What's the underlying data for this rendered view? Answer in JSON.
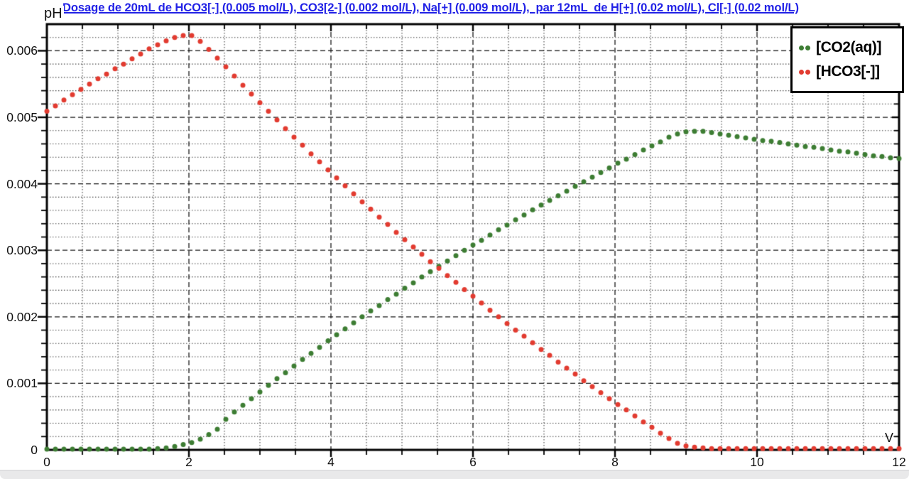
{
  "title": {
    "text": "Dosage de 20mL de HCO3[-] (0.005 mol/L), CO3[2-] (0.002 mol/L), Na[+] (0.009 mol/L),  par 12mL  de H[+] (0.02 mol/L), Cl[-] (0.02 mol/L)",
    "color": "#2222e6"
  },
  "axes": {
    "y_label": "pH",
    "x_label": "V",
    "x_ticks": [
      "0",
      "2",
      "4",
      "6",
      "8",
      "10",
      "12"
    ],
    "y_ticks": [
      "0",
      "0.001",
      "0.002",
      "0.003",
      "0.004",
      "0.005",
      "0.006"
    ]
  },
  "legend": {
    "items": [
      {
        "label": "[CO2(aq)]",
        "color": "#3d7d33"
      },
      {
        "label": "[HCO3[-]]",
        "color": "#e23b30"
      }
    ]
  },
  "chart_data": {
    "type": "scatter",
    "title": "Dosage de 20mL de HCO3[-] (0.005 mol/L), CO3[2-] (0.002 mol/L), Na[+] (0.009 mol/L),  par 12mL  de H[+] (0.02 mol/L), Cl[-] (0.02 mol/L)",
    "xlabel": "V",
    "ylabel": "pH",
    "xlim": [
      0,
      12
    ],
    "ylim": [
      0,
      0.0064
    ],
    "x_major_step": 2,
    "x_minor_step": 0.5,
    "y_major_step": 0.001,
    "y_minor_step": 0.0002,
    "grid": true,
    "legend_position": "top-right",
    "x": [
      0,
      0.12,
      0.24,
      0.36,
      0.48,
      0.6,
      0.72,
      0.84,
      0.96,
      1.08,
      1.2,
      1.32,
      1.44,
      1.56,
      1.68,
      1.8,
      1.92,
      2.04,
      2.16,
      2.28,
      2.4,
      2.52,
      2.64,
      2.76,
      2.88,
      3,
      3.12,
      3.24,
      3.36,
      3.48,
      3.6,
      3.72,
      3.84,
      3.96,
      4.08,
      4.2,
      4.32,
      4.44,
      4.56,
      4.68,
      4.8,
      4.92,
      5.04,
      5.16,
      5.28,
      5.4,
      5.52,
      5.64,
      5.76,
      5.88,
      6,
      6.12,
      6.24,
      6.36,
      6.48,
      6.6,
      6.72,
      6.84,
      6.96,
      7.08,
      7.2,
      7.32,
      7.44,
      7.56,
      7.68,
      7.8,
      7.92,
      8.04,
      8.16,
      8.28,
      8.4,
      8.52,
      8.64,
      8.76,
      8.88,
      9,
      9.12,
      9.24,
      9.36,
      9.48,
      9.6,
      9.72,
      9.84,
      9.96,
      10.08,
      10.2,
      10.32,
      10.44,
      10.56,
      10.68,
      10.8,
      10.92,
      11.04,
      11.16,
      11.28,
      11.4,
      11.52,
      11.64,
      11.76,
      11.88,
      12
    ],
    "series": [
      {
        "name": "[CO2(aq)]",
        "color": "#3d7d33",
        "values": [
          1e-05,
          1e-05,
          1e-05,
          1e-05,
          1e-05,
          1e-05,
          1e-05,
          1e-05,
          1e-05,
          1e-05,
          1e-05,
          1e-05,
          1e-05,
          2e-05,
          3e-05,
          5e-05,
          8e-05,
          0.00011,
          0.00016,
          0.00023,
          0.00031,
          0.00046,
          0.00057,
          0.00067,
          0.00077,
          0.00087,
          0.00097,
          0.00107,
          0.00116,
          0.00126,
          0.00136,
          0.00145,
          0.00154,
          0.00164,
          0.00173,
          0.00182,
          0.00191,
          0.002,
          0.00209,
          0.00217,
          0.00226,
          0.00234,
          0.00243,
          0.00251,
          0.0026,
          0.00268,
          0.00276,
          0.00284,
          0.00292,
          0.003,
          0.00308,
          0.00315,
          0.00323,
          0.00331,
          0.00338,
          0.00346,
          0.00353,
          0.00361,
          0.00368,
          0.00375,
          0.00382,
          0.00389,
          0.00396,
          0.00403,
          0.0041,
          0.00417,
          0.00424,
          0.00431,
          0.00437,
          0.00444,
          0.00451,
          0.00457,
          0.00463,
          0.0047,
          0.00475,
          0.00478,
          0.00479,
          0.00479,
          0.00477,
          0.00475,
          0.00473,
          0.00471,
          0.00469,
          0.00467,
          0.00465,
          0.00464,
          0.00462,
          0.0046,
          0.00458,
          0.00456,
          0.00455,
          0.00453,
          0.00451,
          0.00449,
          0.00448,
          0.00446,
          0.00444,
          0.00442,
          0.00441,
          0.00439,
          0.00438
        ]
      },
      {
        "name": "[HCO3[-]]",
        "color": "#e23b30",
        "values": [
          0.00509,
          0.00517,
          0.00526,
          0.00534,
          0.00542,
          0.0055,
          0.00558,
          0.00565,
          0.00573,
          0.0058,
          0.00588,
          0.00595,
          0.00603,
          0.00609,
          0.00615,
          0.0062,
          0.00623,
          0.00623,
          0.00614,
          0.00602,
          0.00589,
          0.00576,
          0.00562,
          0.00548,
          0.00535,
          0.00522,
          0.00509,
          0.00496,
          0.00483,
          0.0047,
          0.00458,
          0.00445,
          0.00433,
          0.00421,
          0.00409,
          0.00397,
          0.00385,
          0.00373,
          0.00362,
          0.0035,
          0.00339,
          0.00327,
          0.00316,
          0.00305,
          0.00294,
          0.00283,
          0.00273,
          0.00262,
          0.00252,
          0.00241,
          0.00231,
          0.00221,
          0.0021,
          0.002,
          0.0019,
          0.0018,
          0.00171,
          0.00161,
          0.00151,
          0.00142,
          0.00132,
          0.00123,
          0.00114,
          0.00104,
          0.00095,
          0.00086,
          0.00077,
          0.00068,
          0.0006,
          0.00051,
          0.00042,
          0.00034,
          0.00025,
          0.00017,
          0.0001,
          6e-05,
          4e-05,
          3e-05,
          2e-05,
          2e-05,
          2e-05,
          2e-05,
          2e-05,
          2e-05,
          2e-05,
          2e-05,
          2e-05,
          2e-05,
          2e-05,
          2e-05,
          2e-05,
          2e-05,
          2e-05,
          2e-05,
          2e-05,
          2e-05,
          2e-05,
          2e-05,
          2e-05,
          2e-05,
          2e-05
        ]
      }
    ]
  }
}
